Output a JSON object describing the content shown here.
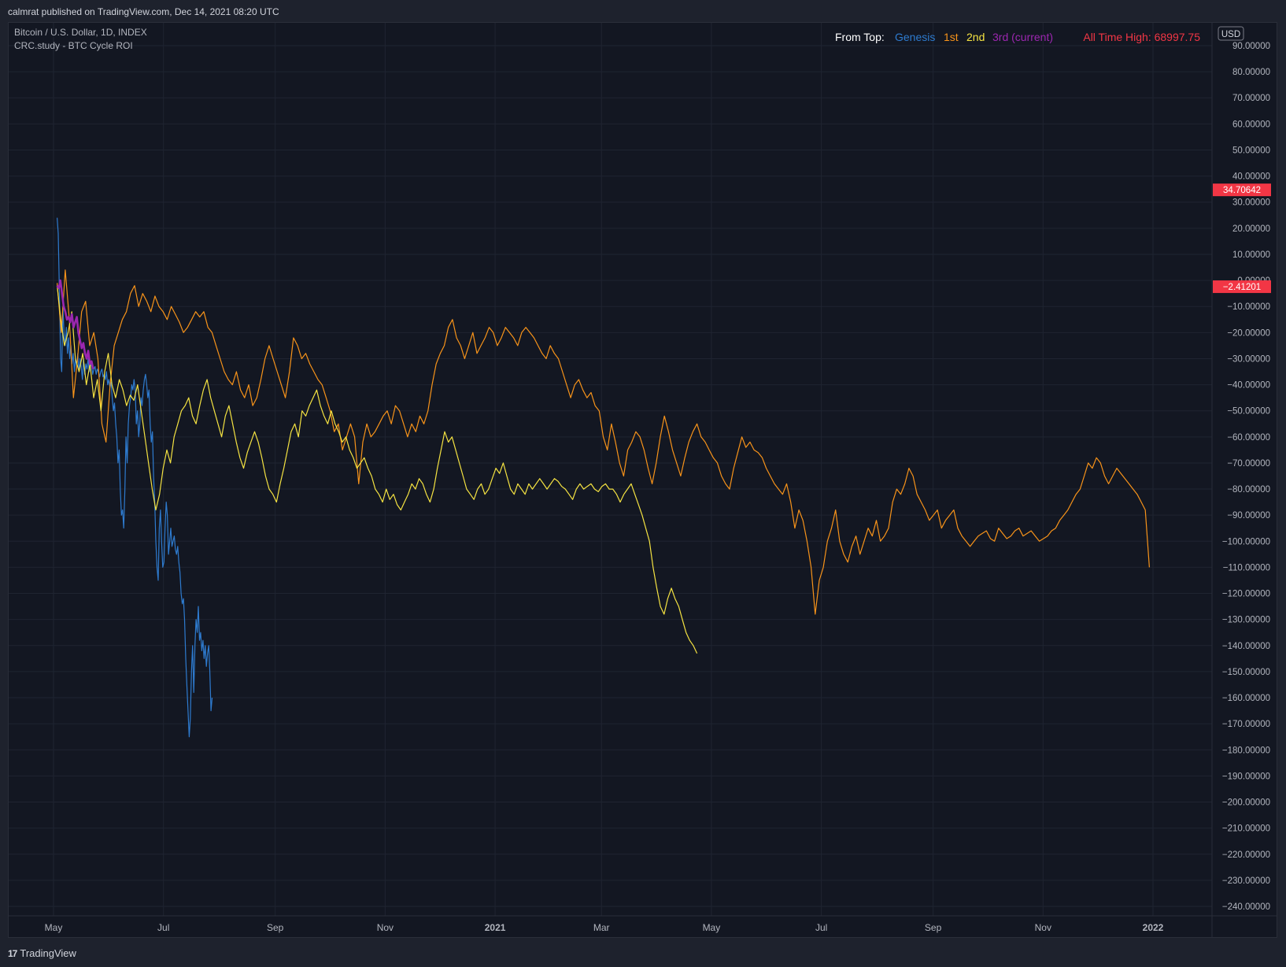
{
  "header": {
    "publisher_line": "calmrat published on TradingView.com, Dec 14, 2021 08:20 UTC"
  },
  "footer": {
    "brand": "TradingView"
  },
  "chart_data": {
    "type": "line",
    "symbol_line": "Bitcoin / U.S. Dollar, 1D, INDEX",
    "study_line": "CRC.study - BTC Cycle ROI",
    "legend": {
      "prefix": "From Top:",
      "entries": [
        {
          "label": "Genesis",
          "color": "#2e7bcf"
        },
        {
          "label": "1st",
          "color": "#f7931a"
        },
        {
          "label": "2nd",
          "color": "#f5e342"
        },
        {
          "label": "3rd (current)",
          "color": "#9c27b0"
        }
      ]
    },
    "ath_label": "All Time High: 68997.75",
    "currency": "USD",
    "ylim": [
      -245,
      95
    ],
    "y_ticks": [
      "90.00000",
      "80.00000",
      "70.00000",
      "60.00000",
      "50.00000",
      "40.00000",
      "30.00000",
      "20.00000",
      "10.00000",
      "0.00000",
      "−10.00000",
      "−20.00000",
      "−30.00000",
      "−40.00000",
      "−50.00000",
      "−60.00000",
      "−70.00000",
      "−80.00000",
      "−90.00000",
      "−100.00000",
      "−110.00000",
      "−120.00000",
      "−130.00000",
      "−140.00000",
      "−150.00000",
      "−160.00000",
      "−170.00000",
      "−180.00000",
      "−190.00000",
      "−200.00000",
      "−210.00000",
      "−220.00000",
      "−230.00000",
      "−240.00000"
    ],
    "y_tick_values": [
      90,
      80,
      70,
      60,
      50,
      40,
      30,
      20,
      10,
      0,
      -10,
      -20,
      -30,
      -40,
      -50,
      -60,
      -70,
      -80,
      -90,
      -100,
      -110,
      -120,
      -130,
      -140,
      -150,
      -160,
      -170,
      -180,
      -190,
      -200,
      -210,
      -220,
      -230,
      -240
    ],
    "x_ticks": [
      {
        "label": "May",
        "bold": false,
        "t": 0
      },
      {
        "label": "Jul",
        "bold": false,
        "t": 61
      },
      {
        "label": "Sep",
        "bold": false,
        "t": 123
      },
      {
        "label": "Nov",
        "bold": false,
        "t": 184
      },
      {
        "label": "2021",
        "bold": true,
        "t": 245
      },
      {
        "label": "Mar",
        "bold": false,
        "t": 304
      },
      {
        "label": "May",
        "bold": false,
        "t": 365
      },
      {
        "label": "Jul",
        "bold": false,
        "t": 426
      },
      {
        "label": "Sep",
        "bold": false,
        "t": 488
      },
      {
        "label": "Nov",
        "bold": false,
        "t": 549
      },
      {
        "label": "2022",
        "bold": true,
        "t": 610
      }
    ],
    "price_tags": [
      {
        "label": "34.70642",
        "value": 34.70642,
        "color": "#f23645"
      },
      {
        "label": "−2.41201",
        "value": -2.41201,
        "color": "#f23645"
      }
    ],
    "series": [
      {
        "name": "Genesis",
        "color": "#2e7bcf",
        "width": 1.2,
        "t_start": 10,
        "values": [
          24,
          18,
          -5,
          -30,
          -35,
          -10,
          -20,
          -25,
          -18,
          -28,
          -22,
          -30,
          -25,
          -32,
          -28,
          -35,
          -30,
          -33,
          -28,
          -35,
          -30,
          -33,
          -38,
          -30,
          -36,
          -32,
          -34,
          -30,
          -35,
          -33,
          -32,
          -36,
          -34,
          -33,
          -36,
          -34,
          -35,
          -37,
          -35,
          -34,
          -37,
          -36,
          -38,
          -35,
          -40,
          -38,
          -41,
          -39,
          -45,
          -50,
          -47,
          -55,
          -60,
          -70,
          -65,
          -80,
          -90,
          -88,
          -95,
          -80,
          -60,
          -70,
          -55,
          -48,
          -45,
          -40,
          -42,
          -38,
          -42,
          -55,
          -50,
          -60,
          -55,
          -45,
          -48,
          -42,
          -38,
          -36,
          -40,
          -45,
          -42,
          -55,
          -62,
          -58,
          -75,
          -85,
          -100,
          -110,
          -115,
          -95,
          -88,
          -100,
          -110,
          -108,
          -95,
          -85,
          -90,
          -105,
          -100,
          -95,
          -102,
          -100,
          -98,
          -103,
          -105,
          -102,
          -108,
          -112,
          -120,
          -124,
          -122,
          -130,
          -145,
          -155,
          -165,
          -175,
          -168,
          -150,
          -140,
          -158,
          -140,
          -130,
          -135,
          -125,
          -138,
          -135,
          -142,
          -138,
          -145,
          -140,
          -148,
          -143,
          -140,
          -150,
          -165,
          -160
        ]
      },
      {
        "name": "1st",
        "color": "#f7931a",
        "width": 1.2,
        "t_start": 10,
        "values": [
          -1,
          -20,
          4,
          -15,
          -45,
          -30,
          -12,
          -8,
          -25,
          -20,
          -30,
          -55,
          -62,
          -40,
          -25,
          -20,
          -15,
          -12,
          -5,
          -2,
          -10,
          -5,
          -8,
          -12,
          -6,
          -10,
          -12,
          -15,
          -10,
          -13,
          -16,
          -20,
          -18,
          -15,
          -12,
          -14,
          -12,
          -18,
          -20,
          -25,
          -30,
          -35,
          -38,
          -40,
          -35,
          -42,
          -45,
          -40,
          -48,
          -45,
          -38,
          -30,
          -25,
          -30,
          -35,
          -40,
          -45,
          -35,
          -22,
          -25,
          -30,
          -28,
          -32,
          -35,
          -38,
          -40,
          -45,
          -50,
          -58,
          -55,
          -65,
          -60,
          -55,
          -60,
          -78,
          -62,
          -55,
          -60,
          -58,
          -55,
          -52,
          -50,
          -55,
          -48,
          -50,
          -55,
          -60,
          -55,
          -58,
          -52,
          -55,
          -50,
          -40,
          -32,
          -28,
          -25,
          -18,
          -15,
          -22,
          -25,
          -30,
          -25,
          -20,
          -28,
          -25,
          -22,
          -18,
          -20,
          -25,
          -22,
          -18,
          -20,
          -22,
          -25,
          -20,
          -18,
          -20,
          -22,
          -25,
          -28,
          -30,
          -25,
          -28,
          -30,
          -35,
          -40,
          -45,
          -40,
          -38,
          -42,
          -45,
          -43,
          -48,
          -50,
          -60,
          -65,
          -55,
          -62,
          -70,
          -75,
          -65,
          -62,
          -58,
          -60,
          -65,
          -72,
          -78,
          -70,
          -60,
          -52,
          -58,
          -65,
          -70,
          -75,
          -68,
          -62,
          -58,
          -55,
          -60,
          -62,
          -65,
          -68,
          -70,
          -75,
          -78,
          -80,
          -72,
          -66,
          -60,
          -64,
          -62,
          -65,
          -66,
          -68,
          -72,
          -75,
          -78,
          -80,
          -82,
          -78,
          -85,
          -95,
          -88,
          -92,
          -100,
          -110,
          -128,
          -115,
          -110,
          -100,
          -95,
          -88,
          -100,
          -105,
          -108,
          -102,
          -98,
          -105,
          -100,
          -95,
          -98,
          -92,
          -100,
          -98,
          -95,
          -85,
          -80,
          -82,
          -78,
          -72,
          -75,
          -82,
          -85,
          -88,
          -92,
          -90,
          -88,
          -95,
          -92,
          -90,
          -88,
          -95,
          -98,
          -100,
          -102,
          -100,
          -98,
          -97,
          -96,
          -99,
          -100,
          -95,
          -97,
          -99,
          -98,
          -96,
          -95,
          -98,
          -97,
          -96,
          -98,
          -100,
          -99,
          -98,
          -96,
          -95,
          -92,
          -90,
          -88,
          -85,
          -82,
          -80,
          -75,
          -70,
          -72,
          -68,
          -70,
          -75,
          -78,
          -75,
          -72,
          -74,
          -76,
          -78,
          -80,
          -82,
          -85,
          -88,
          -110
        ]
      },
      {
        "name": "2nd",
        "color": "#f5e342",
        "width": 1.2,
        "t_start": 10,
        "values": [
          -2,
          -15,
          -25,
          -20,
          -12,
          -30,
          -35,
          -28,
          -40,
          -32,
          -45,
          -38,
          -50,
          -35,
          -28,
          -40,
          -45,
          -38,
          -42,
          -48,
          -44,
          -46,
          -40,
          -50,
          -60,
          -70,
          -80,
          -88,
          -82,
          -72,
          -65,
          -70,
          -60,
          -55,
          -50,
          -48,
          -45,
          -52,
          -55,
          -48,
          -42,
          -38,
          -45,
          -50,
          -55,
          -60,
          -52,
          -48,
          -55,
          -62,
          -68,
          -72,
          -66,
          -62,
          -58,
          -62,
          -68,
          -75,
          -80,
          -82,
          -85,
          -78,
          -72,
          -65,
          -58,
          -55,
          -60,
          -50,
          -52,
          -48,
          -45,
          -42,
          -48,
          -52,
          -55,
          -50,
          -55,
          -58,
          -62,
          -60,
          -65,
          -68,
          -72,
          -70,
          -68,
          -72,
          -75,
          -80,
          -82,
          -85,
          -80,
          -84,
          -82,
          -86,
          -88,
          -85,
          -82,
          -78,
          -80,
          -76,
          -78,
          -82,
          -85,
          -80,
          -72,
          -65,
          -58,
          -62,
          -60,
          -65,
          -70,
          -75,
          -80,
          -82,
          -84,
          -80,
          -78,
          -82,
          -80,
          -76,
          -72,
          -74,
          -70,
          -75,
          -80,
          -82,
          -78,
          -80,
          -82,
          -78,
          -80,
          -78,
          -76,
          -78,
          -80,
          -78,
          -76,
          -77,
          -79,
          -80,
          -82,
          -84,
          -80,
          -78,
          -80,
          -79,
          -78,
          -80,
          -81,
          -79,
          -78,
          -80,
          -80,
          -82,
          -85,
          -82,
          -80,
          -78,
          -82,
          -86,
          -90,
          -95,
          -100,
          -110,
          -118,
          -125,
          -128,
          -122,
          -118,
          -122,
          -125,
          -130,
          -135,
          -138,
          -140,
          -143
        ]
      },
      {
        "name": "3rd (current)",
        "color": "#9c27b0",
        "width": 2.6,
        "t_start": 10,
        "values": [
          -2,
          -3,
          0,
          -5,
          -10,
          -12,
          -15,
          -14,
          -16,
          -13,
          -18,
          -16,
          -14,
          -20,
          -23,
          -26,
          -24,
          -28,
          -30,
          -27,
          -32,
          -31,
          -34
        ]
      }
    ]
  }
}
